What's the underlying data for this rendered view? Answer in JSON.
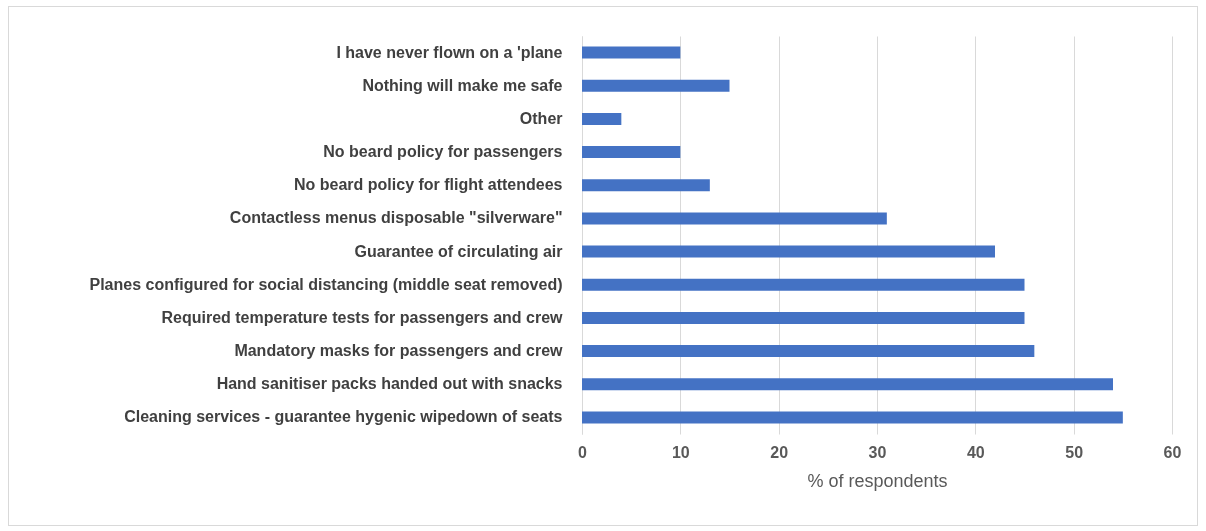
{
  "chart_data": {
    "type": "bar",
    "orientation": "horizontal",
    "xlabel": "% of respondents",
    "categories": [
      "I have never flown on a 'plane",
      "Nothing will make me safe",
      "Other",
      "No beard policy for passengers",
      "No beard policy for flight attendees",
      "Contactless menus disposable \"silverware\"",
      "Guarantee of circulating air",
      "Planes configured for social distancing (middle seat removed)",
      "Required temperature tests for passengers and crew",
      "Mandatory masks for passengers and crew",
      "Hand sanitiser packs handed out with snacks",
      "Cleaning services - guarantee hygenic wipedown of seats"
    ],
    "values": [
      10,
      15,
      4,
      10,
      13,
      31,
      42,
      45,
      45,
      46,
      54,
      55
    ],
    "color": "#4472c4",
    "xlim": [
      0,
      60
    ],
    "xticks": [
      0,
      10,
      20,
      30,
      40,
      50,
      60
    ],
    "grid": "x"
  }
}
